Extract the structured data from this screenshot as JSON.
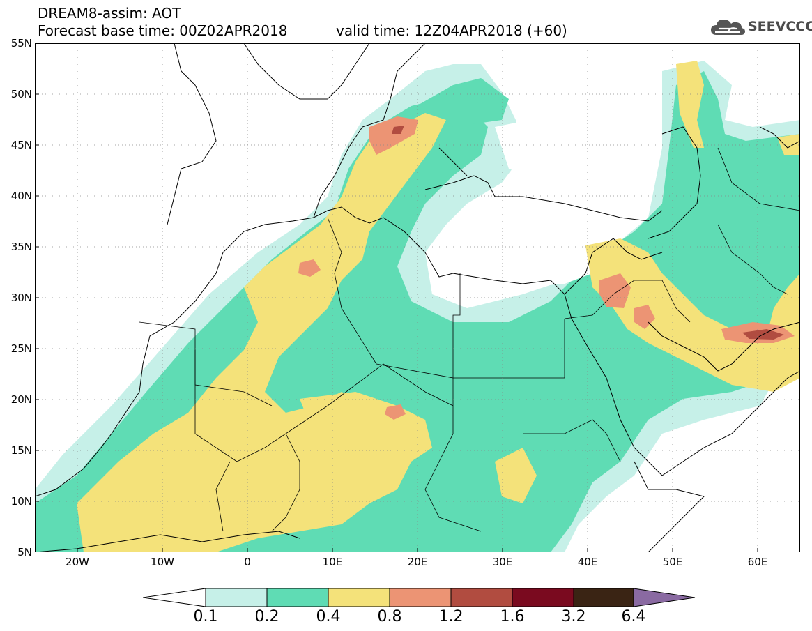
{
  "header": {
    "title_line1": "DREAM8-assim: AOT",
    "title_line2": "Forecast base time: 00Z02APR2018",
    "valid_time": "valid time: 12Z04APR2018 (+60)",
    "logo_text": "SEEVCCC",
    "logo_icon": "cloud-icon"
  },
  "map": {
    "variable": "AOT",
    "projection": "lat-lon",
    "lon_range": [
      -25,
      65
    ],
    "lat_range": [
      5,
      55
    ],
    "lat_labels": [
      "55N",
      "50N",
      "45N",
      "40N",
      "35N",
      "30N",
      "25N",
      "20N",
      "15N",
      "10N",
      "5N"
    ],
    "lon_labels": [
      "20W",
      "10W",
      "0",
      "10E",
      "20E",
      "30E",
      "40E",
      "50E",
      "60E"
    ],
    "gridlines": "dotted"
  },
  "colorbar": {
    "levels": [
      "0.1",
      "0.2",
      "0.4",
      "0.8",
      "1.2",
      "1.6",
      "3.2",
      "6.4"
    ],
    "colors": [
      "#ffffff",
      "#c6f0e8",
      "#5fdcb4",
      "#f4e27a",
      "#ec9474",
      "#b14c40",
      "#7a0a1f",
      "#3a2414",
      "#8a6aa2"
    ]
  }
}
